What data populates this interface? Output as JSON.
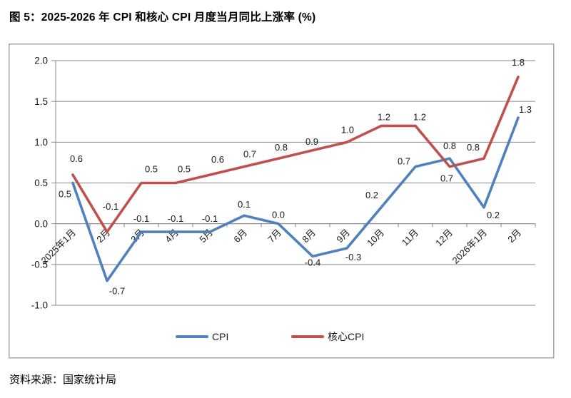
{
  "figure": {
    "title": "图 5：2025-2026 年 CPI 和核心 CPI 月度当月同比上涨率 (%)",
    "source": "资料来源：国家统计局"
  },
  "chart_data": {
    "type": "line",
    "title": "2025-2026 年 CPI 和核心 CPI 月度当月同比上涨率 (%)",
    "categories": [
      "2025年1月",
      "2月",
      "3月",
      "4月",
      "5月",
      "6月",
      "7月",
      "8月",
      "9月",
      "10月",
      "11月",
      "12月",
      "2026年1月",
      "2月"
    ],
    "series": [
      {
        "name": "CPI",
        "color": "#4F81BD",
        "values": [
          0.5,
          -0.7,
          -0.1,
          -0.1,
          -0.1,
          0.1,
          0.0,
          -0.4,
          -0.3,
          0.2,
          0.7,
          0.8,
          0.2,
          1.3
        ]
      },
      {
        "name": "核心CPI",
        "color": "#C0504D",
        "values": [
          0.6,
          -0.1,
          0.5,
          0.5,
          0.6,
          0.7,
          0.8,
          0.9,
          1.0,
          1.2,
          1.2,
          0.7,
          0.8,
          1.8
        ]
      }
    ],
    "ylim": [
      -1.0,
      2.0
    ],
    "ytick_step": 0.5,
    "ytick_labels": [
      "2.0",
      "1.5",
      "1.0",
      "0.5",
      "0.0",
      "-0.5",
      "-1.0"
    ],
    "grid": true,
    "data_labels": true,
    "data_label_decimals": 1,
    "legend_position": "bottom",
    "xlabel": "",
    "ylabel": "",
    "colors": {
      "grid": "#8A8A8A",
      "axis": "#8A8A8A",
      "text": "#1A1A1A",
      "plot_border": "#A6A6A6",
      "background": "#FFFFFF"
    }
  }
}
